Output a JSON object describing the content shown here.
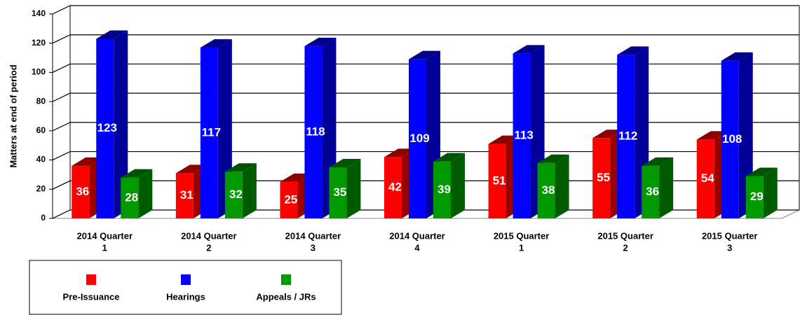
{
  "chart_data": {
    "type": "bar3d",
    "y_label": "Matters at end of period",
    "categories": [
      [
        "2014  Quarter",
        "1"
      ],
      [
        "2014  Quarter",
        "2"
      ],
      [
        "2014  Quarter",
        "3"
      ],
      [
        "2014  Quarter",
        "4"
      ],
      [
        "2015  Quarter",
        "1"
      ],
      [
        "2015  Quarter",
        "2"
      ],
      [
        "2015  Quarter",
        "3"
      ]
    ],
    "series": [
      {
        "name": "Pre-Issuance",
        "color": "#ff0000",
        "values": [
          36,
          31,
          25,
          42,
          51,
          55,
          54
        ]
      },
      {
        "name": "Hearings",
        "color": "#0000ff",
        "values": [
          123,
          117,
          118,
          109,
          113,
          112,
          108
        ]
      },
      {
        "name": "Appeals / JRs",
        "color": "#009900",
        "values": [
          28,
          32,
          35,
          39,
          38,
          36,
          29
        ]
      }
    ],
    "ylim": [
      0,
      140
    ],
    "yticks": [
      0,
      20,
      40,
      60,
      80,
      100,
      120,
      140
    ],
    "grid": true
  }
}
